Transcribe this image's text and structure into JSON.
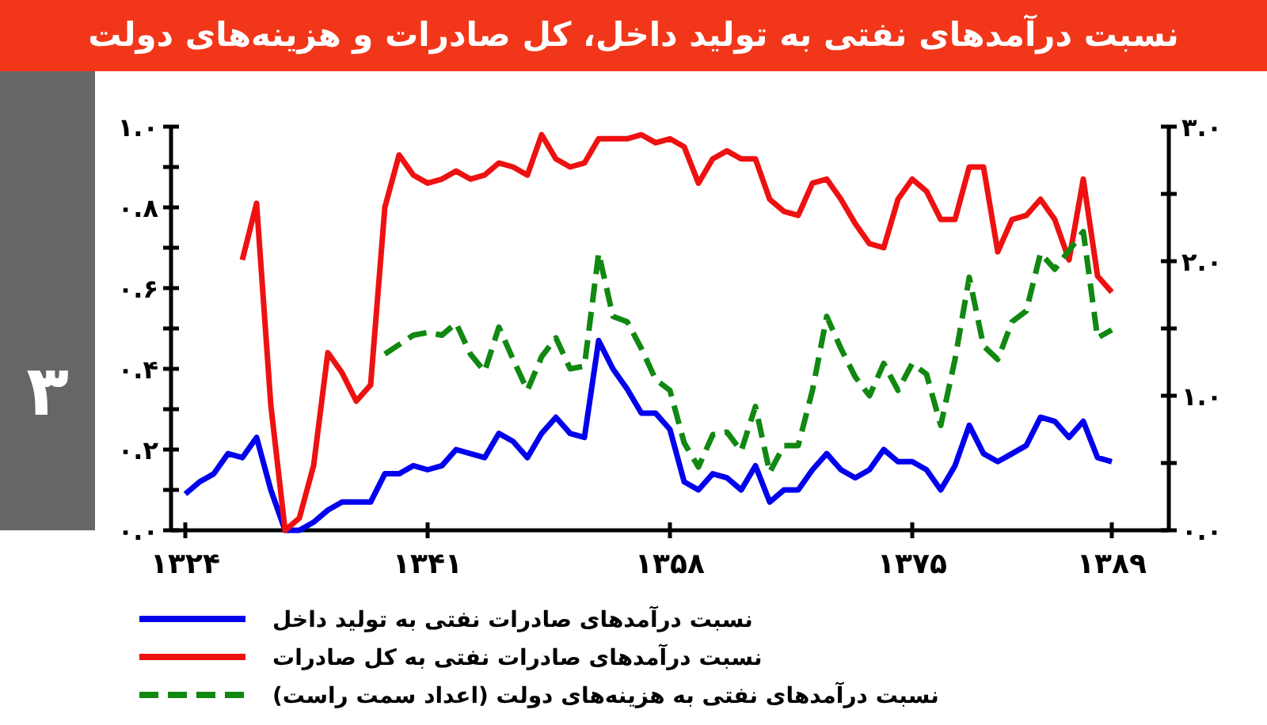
{
  "chart_data": {
    "type": "line",
    "title": "نسبت درآمدهای نفتی به تولید داخل، کل صادرات و هزینه‌های دولت",
    "annotations": [
      "۳"
    ],
    "x": [
      1324,
      1325,
      1326,
      1327,
      1328,
      1329,
      1330,
      1331,
      1332,
      1333,
      1334,
      1335,
      1336,
      1337,
      1338,
      1339,
      1340,
      1341,
      1342,
      1343,
      1344,
      1345,
      1346,
      1347,
      1348,
      1349,
      1350,
      1351,
      1352,
      1353,
      1354,
      1355,
      1356,
      1357,
      1358,
      1359,
      1360,
      1361,
      1362,
      1363,
      1364,
      1365,
      1366,
      1367,
      1368,
      1369,
      1370,
      1371,
      1372,
      1373,
      1374,
      1375,
      1376,
      1377,
      1378,
      1379,
      1380,
      1381,
      1382,
      1383,
      1384,
      1385,
      1386,
      1387,
      1388,
      1389
    ],
    "xlim": [
      1323,
      1393
    ],
    "xticks": [
      {
        "value": 1324,
        "label": "۱۳۲۴"
      },
      {
        "value": 1341,
        "label": "۱۳۴۱"
      },
      {
        "value": 1358,
        "label": "۱۳۵۸"
      },
      {
        "value": 1375,
        "label": "۱۳۷۵"
      },
      {
        "value": 1389,
        "label": "۱۳۸۹"
      }
    ],
    "ylim": [
      0,
      1
    ],
    "yticks": [
      {
        "value": 0,
        "label": "۰.۰"
      },
      {
        "value": 0.1,
        "label": null
      },
      {
        "value": 0.2,
        "label": "۰.۲"
      },
      {
        "value": 0.3,
        "label": null
      },
      {
        "value": 0.4,
        "label": "۰.۴"
      },
      {
        "value": 0.5,
        "label": null
      },
      {
        "value": 0.6,
        "label": "۰.۶"
      },
      {
        "value": 0.7,
        "label": null
      },
      {
        "value": 0.8,
        "label": "۰.۸"
      },
      {
        "value": 0.9,
        "label": null
      },
      {
        "value": 1,
        "label": "۱.۰"
      }
    ],
    "y2lim": [
      0,
      3
    ],
    "y2ticks": [
      {
        "value": 0,
        "label": "۰.۰"
      },
      {
        "value": 0.5,
        "label": null
      },
      {
        "value": 1,
        "label": "۱.۰"
      },
      {
        "value": 1.5,
        "label": null
      },
      {
        "value": 2,
        "label": "۲.۰"
      },
      {
        "value": 2.5,
        "label": null
      },
      {
        "value": 3,
        "label": "۳.۰"
      }
    ],
    "legend": "bottom",
    "series": [
      {
        "name": "نسبت درآمدهای صادرات نفتی به تولید داخل",
        "color": "#0000ee",
        "values": [
          0.09,
          0.12,
          0.14,
          0.19,
          0.18,
          0.23,
          0.1,
          0.0,
          0.0,
          0.02,
          0.05,
          0.07,
          0.07,
          0.07,
          0.14,
          0.14,
          0.16,
          0.15,
          0.16,
          0.2,
          0.19,
          0.18,
          0.24,
          0.22,
          0.18,
          0.24,
          0.28,
          0.24,
          0.23,
          0.47,
          0.4,
          0.35,
          0.29,
          0.29,
          0.25,
          0.12,
          0.1,
          0.14,
          0.13,
          0.1,
          0.16,
          0.07,
          0.1,
          0.1,
          0.15,
          0.19,
          0.15,
          0.13,
          0.15,
          0.2,
          0.17,
          0.17,
          0.15,
          0.1,
          0.16,
          0.26,
          0.19,
          0.17,
          0.19,
          0.21,
          0.28,
          0.27,
          0.23,
          0.27,
          0.18,
          0.17
        ]
      },
      {
        "name": "نسبت درآمدهای صادرات نفتی به کل صادرات",
        "color": "#ee1111",
        "values": [
          null,
          null,
          null,
          null,
          0.67,
          0.81,
          0.31,
          0.0,
          0.03,
          0.16,
          0.44,
          0.39,
          0.32,
          0.36,
          0.8,
          0.93,
          0.88,
          0.86,
          0.87,
          0.89,
          0.87,
          0.88,
          0.91,
          0.9,
          0.88,
          0.98,
          0.92,
          0.9,
          0.91,
          0.97,
          0.97,
          0.97,
          0.98,
          0.96,
          0.97,
          0.95,
          0.86,
          0.92,
          0.94,
          0.92,
          0.92,
          0.82,
          0.79,
          0.78,
          0.86,
          0.87,
          0.82,
          0.76,
          0.71,
          0.7,
          0.82,
          0.87,
          0.84,
          0.77,
          0.77,
          0.9,
          0.9,
          0.69,
          0.77,
          0.78,
          0.82,
          0.77,
          0.67,
          0.87,
          0.63,
          0.59
        ]
      },
      {
        "name": "نسبت درآمدهای نفتی به هزینه‌های دولت (اعداد سمت راست)",
        "color": "#118811",
        "axis": "y2",
        "line_style": "dashed",
        "values": [
          null,
          null,
          null,
          null,
          null,
          null,
          null,
          null,
          null,
          null,
          null,
          null,
          null,
          null,
          1.31,
          1.38,
          1.45,
          1.47,
          1.45,
          1.54,
          1.31,
          1.18,
          1.51,
          1.27,
          1.04,
          1.29,
          1.43,
          1.2,
          1.22,
          2.06,
          1.59,
          1.55,
          1.35,
          1.12,
          1.04,
          0.65,
          0.47,
          0.71,
          0.73,
          0.59,
          0.92,
          0.43,
          0.63,
          0.63,
          1.04,
          1.59,
          1.35,
          1.14,
          1.0,
          1.24,
          1.04,
          1.24,
          1.16,
          0.78,
          1.27,
          1.88,
          1.37,
          1.27,
          1.55,
          1.63,
          2.06,
          1.94,
          2.08,
          2.22,
          1.43,
          1.49
        ]
      }
    ]
  }
}
